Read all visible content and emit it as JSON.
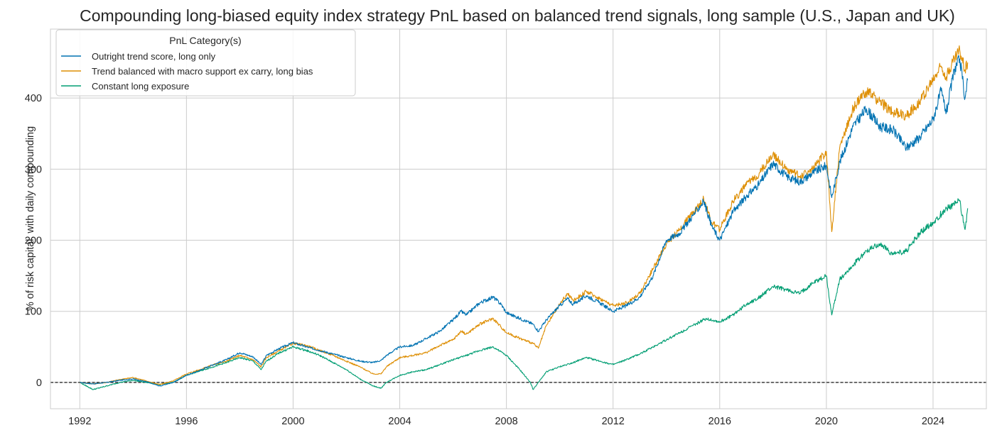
{
  "chart_data": {
    "type": "line",
    "title": "Compounding long-biased equity index strategy PnL based on balanced trend signals, long sample (U.S., Japan and UK)",
    "xlabel": "",
    "ylabel": "% of risk capital, with daily compounding",
    "xlim": [
      1990.9,
      2026.0
    ],
    "ylim": [
      -37,
      497
    ],
    "x_ticks": [
      "1992",
      "1996",
      "2000",
      "2004",
      "2008",
      "2012",
      "2016",
      "2020",
      "2024"
    ],
    "y_ticks": [
      "0",
      "100",
      "200",
      "300",
      "400"
    ],
    "grid": true,
    "zero_line": true,
    "legend": {
      "title": "PnL Category(s)",
      "position": "top-left"
    },
    "series": [
      {
        "name": "Outright trend score, long only",
        "color": "#0072b2",
        "x": [
          1992.0,
          1992.5,
          1993.0,
          1993.5,
          1994.0,
          1994.5,
          1995.0,
          1995.5,
          1996.0,
          1996.5,
          1997.0,
          1997.5,
          1998.0,
          1998.5,
          1998.8,
          1999.0,
          1999.5,
          2000.0,
          2000.5,
          2001.0,
          2001.5,
          2002.0,
          2002.5,
          2003.0,
          2003.3,
          2003.5,
          2004.0,
          2004.5,
          2005.0,
          2005.5,
          2006.0,
          2006.3,
          2006.5,
          2007.0,
          2007.5,
          2007.8,
          2008.0,
          2008.5,
          2009.0,
          2009.2,
          2009.5,
          2010.0,
          2010.3,
          2010.5,
          2011.0,
          2011.5,
          2012.0,
          2012.5,
          2013.0,
          2013.5,
          2014.0,
          2014.5,
          2015.0,
          2015.4,
          2015.7,
          2016.0,
          2016.5,
          2017.0,
          2017.5,
          2018.0,
          2018.5,
          2019.0,
          2019.5,
          2020.0,
          2020.2,
          2020.5,
          2021.0,
          2021.5,
          2022.0,
          2022.5,
          2023.0,
          2023.5,
          2024.0,
          2024.3,
          2024.5,
          2024.8,
          2025.0,
          2025.2,
          2025.3
        ],
        "y": [
          0,
          -2,
          0,
          3,
          5,
          1,
          -5,
          0,
          10,
          17,
          25,
          32,
          42,
          36,
          25,
          38,
          48,
          56,
          50,
          45,
          40,
          35,
          30,
          28,
          31,
          38,
          50,
          52,
          62,
          72,
          88,
          100,
          95,
          112,
          120,
          110,
          98,
          90,
          82,
          72,
          88,
          108,
          118,
          110,
          122,
          112,
          100,
          108,
          120,
          150,
          200,
          210,
          235,
          255,
          220,
          200,
          240,
          262,
          280,
          308,
          290,
          282,
          295,
          305,
          260,
          310,
          360,
          385,
          360,
          355,
          330,
          345,
          370,
          410,
          380,
          440,
          455,
          400,
          425
        ]
      },
      {
        "name": "Trend balanced with macro support ex carry, long bias",
        "color": "#de8f05",
        "x": [
          1992.0,
          1992.5,
          1993.0,
          1993.5,
          1994.0,
          1994.5,
          1995.0,
          1995.5,
          1996.0,
          1996.5,
          1997.0,
          1997.5,
          1998.0,
          1998.5,
          1998.8,
          1999.0,
          1999.5,
          2000.0,
          2000.5,
          2001.0,
          2001.5,
          2002.0,
          2002.5,
          2003.0,
          2003.3,
          2003.5,
          2004.0,
          2004.5,
          2005.0,
          2005.5,
          2006.0,
          2006.3,
          2006.5,
          2007.0,
          2007.5,
          2007.8,
          2008.0,
          2008.5,
          2009.0,
          2009.2,
          2009.5,
          2010.0,
          2010.3,
          2010.5,
          2011.0,
          2011.5,
          2012.0,
          2012.5,
          2013.0,
          2013.5,
          2014.0,
          2014.5,
          2015.0,
          2015.4,
          2015.7,
          2016.0,
          2016.5,
          2017.0,
          2017.5,
          2018.0,
          2018.5,
          2019.0,
          2019.5,
          2020.0,
          2020.2,
          2020.5,
          2021.0,
          2021.5,
          2022.0,
          2022.5,
          2023.0,
          2023.5,
          2024.0,
          2024.3,
          2024.5,
          2024.8,
          2025.0,
          2025.2,
          2025.3
        ],
        "y": [
          0,
          -2,
          0,
          4,
          7,
          2,
          -3,
          2,
          12,
          18,
          25,
          30,
          38,
          32,
          22,
          35,
          45,
          55,
          52,
          45,
          38,
          30,
          22,
          12,
          12,
          22,
          35,
          38,
          42,
          52,
          60,
          72,
          68,
          82,
          90,
          78,
          70,
          62,
          55,
          48,
          80,
          110,
          125,
          115,
          128,
          118,
          108,
          112,
          125,
          160,
          195,
          215,
          240,
          258,
          225,
          215,
          255,
          278,
          295,
          322,
          300,
          290,
          300,
          325,
          212,
          330,
          385,
          410,
          395,
          380,
          375,
          395,
          425,
          445,
          430,
          455,
          468,
          440,
          450
        ]
      },
      {
        "name": "Constant long exposure",
        "color": "#029e73",
        "x": [
          1992.0,
          1992.5,
          1993.0,
          1993.5,
          1994.0,
          1994.5,
          1995.0,
          1995.5,
          1996.0,
          1996.5,
          1997.0,
          1997.5,
          1998.0,
          1998.5,
          1998.8,
          1999.0,
          1999.5,
          2000.0,
          2000.5,
          2001.0,
          2001.5,
          2002.0,
          2002.5,
          2003.0,
          2003.3,
          2003.5,
          2004.0,
          2004.5,
          2005.0,
          2005.5,
          2006.0,
          2006.5,
          2007.0,
          2007.5,
          2008.0,
          2008.5,
          2008.9,
          2009.0,
          2009.2,
          2009.5,
          2010.0,
          2010.5,
          2011.0,
          2011.5,
          2012.0,
          2012.5,
          2013.0,
          2013.5,
          2014.0,
          2014.5,
          2015.0,
          2015.5,
          2016.0,
          2016.5,
          2017.0,
          2017.5,
          2018.0,
          2018.5,
          2019.0,
          2019.5,
          2020.0,
          2020.2,
          2020.5,
          2021.0,
          2021.5,
          2022.0,
          2022.5,
          2023.0,
          2023.5,
          2024.0,
          2024.5,
          2025.0,
          2025.2,
          2025.3
        ],
        "y": [
          0,
          -10,
          -5,
          0,
          3,
          0,
          -3,
          0,
          10,
          16,
          22,
          28,
          35,
          30,
          18,
          30,
          42,
          50,
          45,
          38,
          28,
          18,
          5,
          -5,
          -8,
          0,
          10,
          15,
          18,
          25,
          32,
          38,
          45,
          50,
          38,
          18,
          0,
          -10,
          0,
          15,
          22,
          28,
          35,
          30,
          25,
          32,
          40,
          50,
          60,
          70,
          80,
          90,
          85,
          95,
          110,
          120,
          135,
          130,
          125,
          140,
          150,
          95,
          145,
          165,
          185,
          195,
          180,
          185,
          210,
          225,
          245,
          255,
          215,
          245
        ]
      }
    ]
  }
}
